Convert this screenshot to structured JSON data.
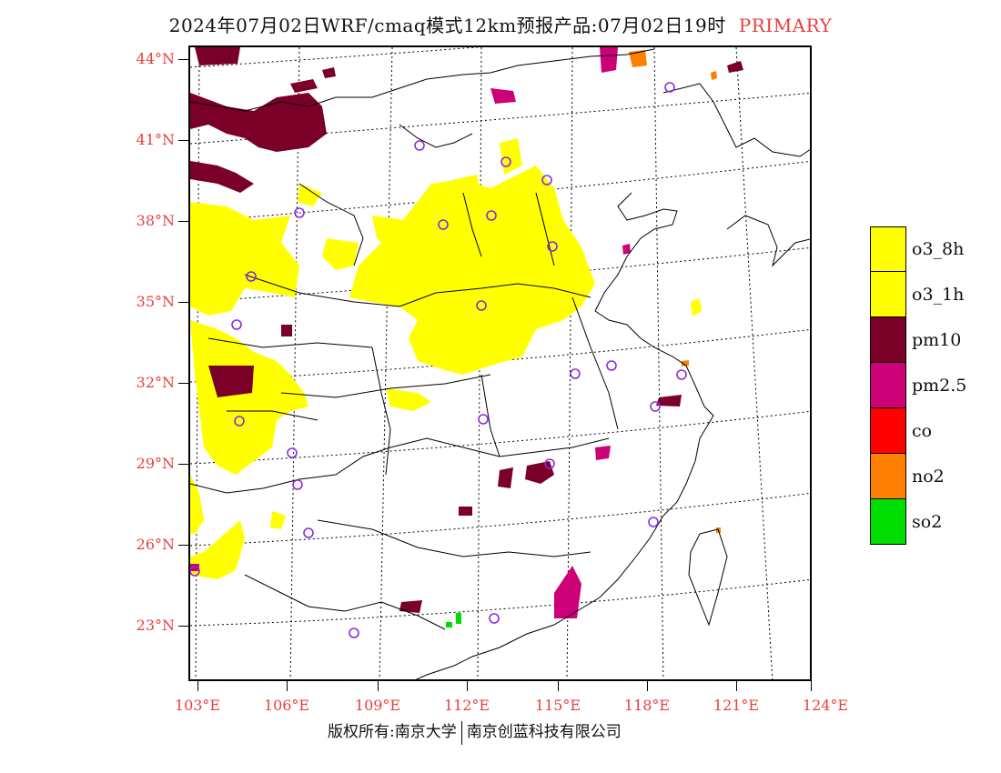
{
  "header": {
    "title": "2024年07月02日WRF/cmaq模式12km预报产品:07月02日19时",
    "tag": "PRIMARY"
  },
  "map": {
    "latitude_labels": [
      "44°N",
      "41°N",
      "38°N",
      "35°N",
      "32°N",
      "29°N",
      "26°N",
      "23°N"
    ],
    "longitude_labels": [
      "103°E",
      "106°E",
      "109°E",
      "112°E",
      "115°E",
      "118°E",
      "121°E",
      "124°E"
    ],
    "station_marker": "circle-icon"
  },
  "legend": {
    "items": [
      {
        "label": "o3_8h",
        "color": "#ffff00"
      },
      {
        "label": "o3_1h",
        "color": "#ffff00"
      },
      {
        "label": "pm10",
        "color": "#7a0028"
      },
      {
        "label": "pm2.5",
        "color": "#cc0077"
      },
      {
        "label": "co",
        "color": "#ff0000"
      },
      {
        "label": "no2",
        "color": "#ff7f00"
      },
      {
        "label": "so2",
        "color": "#00dd00"
      }
    ]
  },
  "footer": {
    "copyright": "版权所有:南京大学",
    "company": "南京创蓝科技有限公司"
  }
}
